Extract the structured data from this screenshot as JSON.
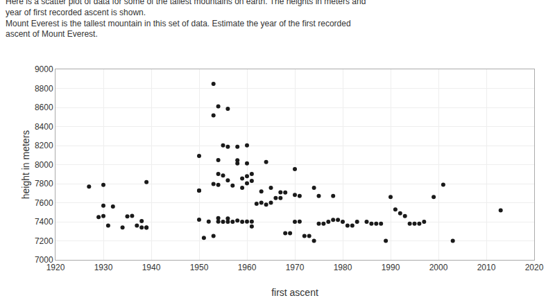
{
  "chart_data": {
    "type": "scatter",
    "title": "Here is a scatter plot of data for some of the tallest mountains on earth. The heights in meters and year of first recorded ascent is shown.",
    "subtitle": "Mount Everest is the tallest mountain in this set of data. Estimate the year of the first recorded ascent of Mount Everest.",
    "xlabel": "first ascent",
    "ylabel": "height in meters",
    "color": "#1a1a1a",
    "grid": true,
    "xlim": [
      1920,
      2020
    ],
    "ylim": [
      7000,
      9000
    ],
    "xticks": [
      1920,
      1930,
      1940,
      1950,
      1960,
      1970,
      1980,
      1990,
      2000,
      2010,
      2020
    ],
    "yticks": [
      7000,
      7200,
      7400,
      7600,
      7800,
      8000,
      8200,
      8400,
      8600,
      8800,
      9000
    ],
    "x": [
      1953,
      1954,
      1956,
      1953,
      1955,
      1956,
      1958,
      1960,
      1950,
      1954,
      1958,
      1964,
      1960,
      1958,
      1970,
      1961,
      1954,
      1955,
      1960,
      1959,
      1956,
      1961,
      1960,
      1930,
      1939,
      1953,
      1954,
      1957,
      1959,
      1965,
      1974,
      2001,
      1950,
      1963,
      1967,
      1968,
      1970,
      1971,
      1975,
      1978,
      1930,
      1932,
      1935,
      1936,
      1937,
      1938,
      1939,
      1950,
      1954,
      1956,
      1958,
      1952,
      1954,
      1950,
      1951,
      1953,
      1955,
      1956,
      1957,
      1959,
      1960,
      1961,
      1961,
      1962,
      1963,
      1964,
      1965,
      1966,
      1967,
      1968,
      1969,
      1970,
      1971,
      1972,
      1973,
      1974,
      1975,
      1976,
      1977,
      1978,
      1979,
      1980,
      1981,
      1982,
      1983,
      1985,
      1986,
      1987,
      1988,
      1989,
      1990,
      1991,
      1992,
      1993,
      1994,
      1995,
      1996,
      1997,
      1999,
      2003,
      2013,
      1927,
      1929,
      1930,
      1931,
      1934,
      1938,
      1939
    ],
    "values": [
      8848,
      8611,
      8586,
      8516,
      8201,
      8188,
      8188,
      8201,
      8091,
      8047,
      8046,
      8027,
      8012,
      8012,
      7952,
      7902,
      7902,
      7885,
      7879,
      7855,
      7835,
      7830,
      7804,
      7788,
      7817,
      7796,
      7788,
      7780,
      7756,
      7756,
      7756,
      7790,
      7728,
      7719,
      7710,
      7708,
      7682,
      7671,
      7671,
      7671,
      7570,
      7560,
      7456,
      7462,
      7360,
      7408,
      7338,
      7422,
      7438,
      7435,
      7412,
      7402,
      7402,
      7728,
      7230,
      7250,
      7400,
      7400,
      7400,
      7400,
      7402,
      7402,
      7350,
      7590,
      7600,
      7580,
      7600,
      7650,
      7650,
      7280,
      7280,
      7400,
      7402,
      7250,
      7250,
      7200,
      7380,
      7380,
      7400,
      7420,
      7420,
      7400,
      7360,
      7360,
      7400,
      7400,
      7380,
      7380,
      7380,
      7200,
      7660,
      7530,
      7490,
      7460,
      7380,
      7380,
      7380,
      7400,
      7660,
      7200,
      7520,
      7770,
      7450,
      7460,
      7360,
      7340,
      7340,
      7340
    ]
  }
}
